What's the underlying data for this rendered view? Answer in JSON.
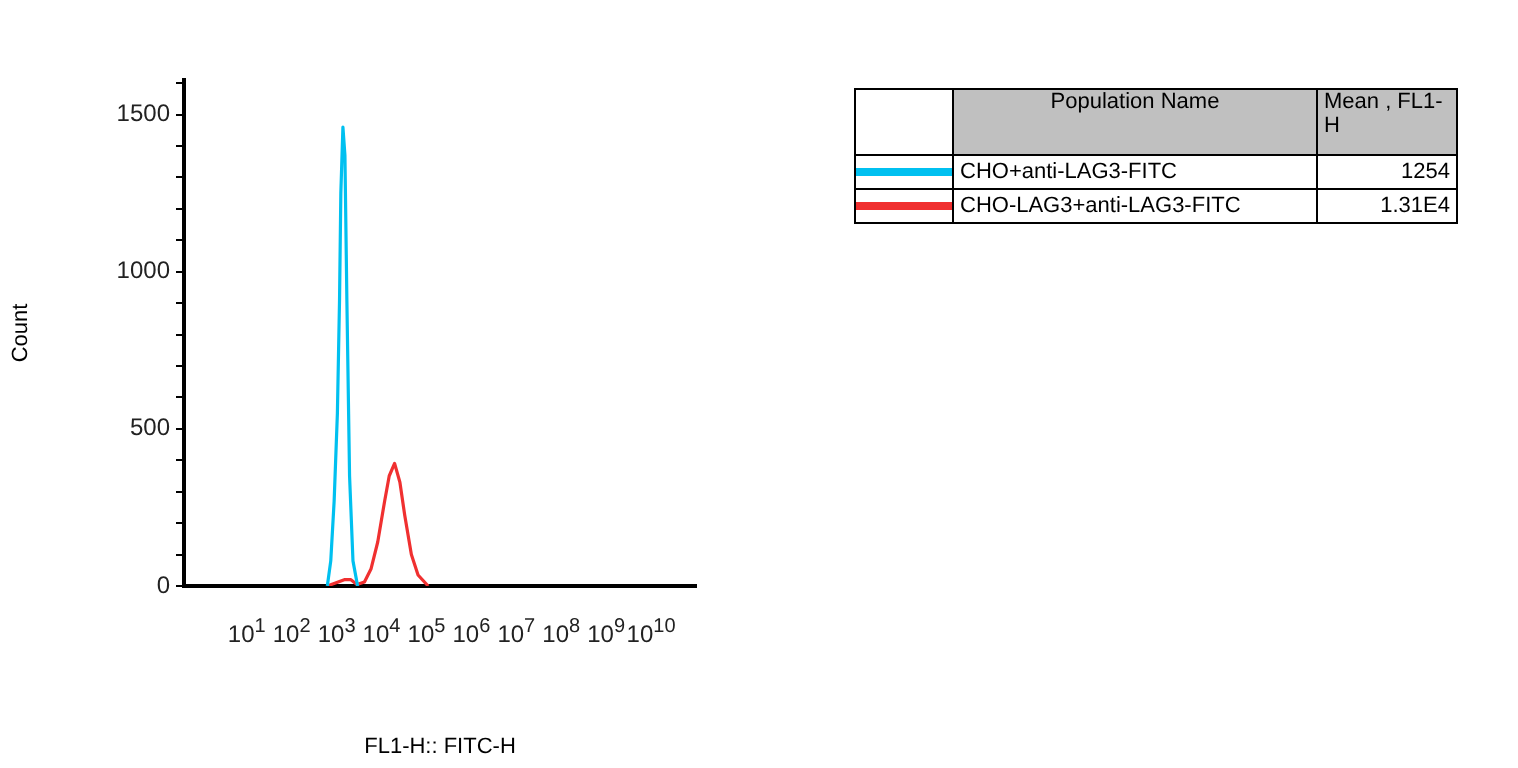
{
  "chart_data": {
    "type": "line",
    "xlabel": "FL1-H:: FITC-H",
    "ylabel": "Count",
    "log": "x",
    "xlim": [
      0.4,
      100000000000
    ],
    "xticks": [
      {
        "value": 10,
        "label": "10$^{1}$"
      },
      {
        "value": 100,
        "label": "10$^{2}$"
      },
      {
        "value": 1000,
        "label": "10$^{3}$"
      },
      {
        "value": 10000,
        "label": "10$^{4}$"
      },
      {
        "value": 100000,
        "label": "10$^{5}$"
      },
      {
        "value": 1000000,
        "label": "10$^{6}$"
      },
      {
        "value": 10000000,
        "label": "10$^{7}$"
      },
      {
        "value": 100000000,
        "label": "10$^{8}$"
      },
      {
        "value": 1000000000,
        "label": "10$^{9}$"
      },
      {
        "value": 10000000000,
        "label": "10$^{10}$"
      }
    ],
    "ylim": [
      0,
      1610
    ],
    "yticks": [
      0,
      {
        "value": 100,
        "label": null
      },
      {
        "value": 200,
        "label": null
      },
      {
        "value": 300,
        "label": null
      },
      {
        "value": 400,
        "label": null
      },
      500,
      {
        "value": 600,
        "label": null
      },
      {
        "value": 700,
        "label": null
      },
      {
        "value": 800,
        "label": null
      },
      {
        "value": 900,
        "label": null
      },
      1000,
      {
        "value": 1100,
        "label": null
      },
      {
        "value": 1200,
        "label": null
      },
      {
        "value": 1300,
        "label": null
      },
      {
        "value": 1400,
        "label": null
      },
      1500,
      {
        "value": 1600,
        "label": null
      }
    ],
    "grid": false,
    "legend": "right",
    "legend_title": "Population Name",
    "marker": "none",
    "annotations": [
      "Mean , FL1-H",
      "1254",
      "1.31E4"
    ],
    "series": [
      {
        "name": "CHO+anti-LAG3-FITC",
        "color": "#00c0f0",
        "x": [
          620,
          740,
          880,
          1040,
          1160,
          1240,
          1380,
          1530,
          1690,
          1940,
          2310,
          2930
        ],
        "values": [
          0,
          80,
          270,
          550,
          910,
          1250,
          1460,
          1370,
          910,
          350,
          80,
          0
        ]
      },
      {
        "name": "CHO-LAG3+anti-LAG3-FITC",
        "color": "#f03030",
        "x": [
          620,
          1480,
          2080,
          2840,
          4160,
          5850,
          8220,
          11700,
          14800,
          19500,
          25600,
          32800,
          46100,
          64900,
          109000
        ],
        "values": [
          0,
          20,
          20,
          5,
          13,
          55,
          140,
          270,
          350,
          390,
          330,
          225,
          100,
          35,
          0
        ]
      }
    ]
  }
}
